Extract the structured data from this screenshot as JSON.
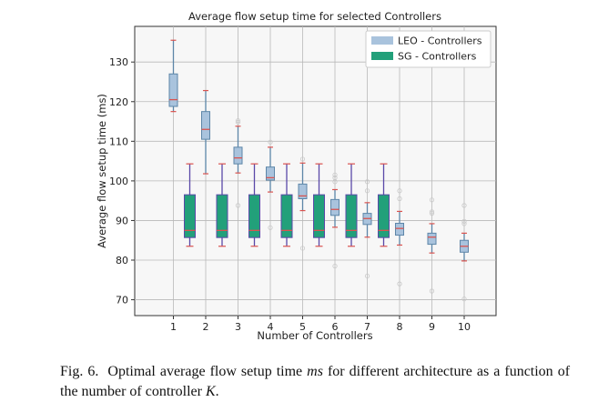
{
  "chart_data": {
    "type": "box",
    "title": "Average flow setup time for selected Controllers",
    "xlabel": "Number of Controllers",
    "ylabel": "Average flow setup time (ms)",
    "ylim": [
      66,
      139
    ],
    "yticks": [
      70,
      80,
      90,
      100,
      110,
      120,
      130
    ],
    "categories": [
      "1",
      "2",
      "3",
      "4",
      "5",
      "6",
      "7",
      "8",
      "9",
      "10"
    ],
    "grid": true,
    "legend_position": "top-right",
    "series": [
      {
        "name": "LEO - Controllers",
        "color": "#a9c3dd",
        "edge": "#5d86a8",
        "boxes": [
          {
            "x": 1,
            "whislo": 117.5,
            "q1": 118.8,
            "med": 120.5,
            "q3": 127.0,
            "whishi": 135.5,
            "fliers": []
          },
          {
            "x": 2,
            "whislo": 101.8,
            "q1": 110.5,
            "med": 113.0,
            "q3": 117.5,
            "whishi": 122.8,
            "fliers": []
          },
          {
            "x": 3,
            "whislo": 102.0,
            "q1": 104.3,
            "med": 105.8,
            "q3": 108.5,
            "whishi": 113.8,
            "fliers": [
              115.2,
              114.8,
              93.8
            ]
          },
          {
            "x": 4,
            "whislo": 97.2,
            "q1": 100.2,
            "med": 100.8,
            "q3": 103.5,
            "whishi": 108.5,
            "fliers": [
              109.8,
              88.2
            ]
          },
          {
            "x": 5,
            "whislo": 92.5,
            "q1": 95.5,
            "med": 96.2,
            "q3": 99.2,
            "whishi": 104.5,
            "fliers": [
              105.5,
              83.0
            ]
          },
          {
            "x": 6,
            "whislo": 88.3,
            "q1": 91.3,
            "med": 92.8,
            "q3": 95.3,
            "whishi": 97.8,
            "fliers": [
              101.5,
              100.8,
              99.8,
              78.5
            ]
          },
          {
            "x": 7,
            "whislo": 85.8,
            "q1": 89.0,
            "med": 90.5,
            "q3": 91.8,
            "whishi": 94.5,
            "fliers": [
              99.8,
              97.5,
              76.0
            ]
          },
          {
            "x": 8,
            "whislo": 83.8,
            "q1": 86.3,
            "med": 88.0,
            "q3": 89.3,
            "whishi": 92.3,
            "fliers": [
              97.5,
              95.5,
              74.0
            ]
          },
          {
            "x": 9,
            "whislo": 81.8,
            "q1": 84.0,
            "med": 85.8,
            "q3": 86.8,
            "whishi": 89.2,
            "fliers": [
              95.2,
              92.2,
              91.8,
              72.2
            ]
          },
          {
            "x": 10,
            "whislo": 79.8,
            "q1": 82.0,
            "med": 83.5,
            "q3": 85.0,
            "whishi": 86.8,
            "fliers": [
              93.8,
              89.8,
              89.2,
              70.2
            ]
          }
        ]
      },
      {
        "name": "SG - Controllers",
        "color": "#22a07a",
        "edge": "#5a49a8",
        "boxes": [
          {
            "x": 1,
            "whislo": 83.5,
            "q1": 85.7,
            "med": 87.5,
            "q3": 96.5,
            "whishi": 104.3,
            "fliers": []
          },
          {
            "x": 2,
            "whislo": 83.5,
            "q1": 85.7,
            "med": 87.5,
            "q3": 96.5,
            "whishi": 104.3,
            "fliers": []
          },
          {
            "x": 3,
            "whislo": 83.5,
            "q1": 85.7,
            "med": 87.5,
            "q3": 96.5,
            "whishi": 104.3,
            "fliers": []
          },
          {
            "x": 4,
            "whislo": 83.5,
            "q1": 85.7,
            "med": 87.5,
            "q3": 96.5,
            "whishi": 104.3,
            "fliers": []
          },
          {
            "x": 5,
            "whislo": 83.5,
            "q1": 85.7,
            "med": 87.5,
            "q3": 96.5,
            "whishi": 104.3,
            "fliers": []
          },
          {
            "x": 6,
            "whislo": 83.5,
            "q1": 85.7,
            "med": 87.5,
            "q3": 96.5,
            "whishi": 104.3,
            "fliers": []
          },
          {
            "x": 7,
            "whislo": 83.5,
            "q1": 85.7,
            "med": 87.5,
            "q3": 96.5,
            "whishi": 104.3,
            "fliers": []
          }
        ]
      }
    ],
    "median_color": "#d9534f"
  },
  "caption": {
    "label": "Fig. 6.",
    "text_before": "Optimal average flow setup time ",
    "emph": "ms",
    "text_after": " for different architecture as a function of the number of controller ",
    "var": "K",
    "end": "."
  }
}
